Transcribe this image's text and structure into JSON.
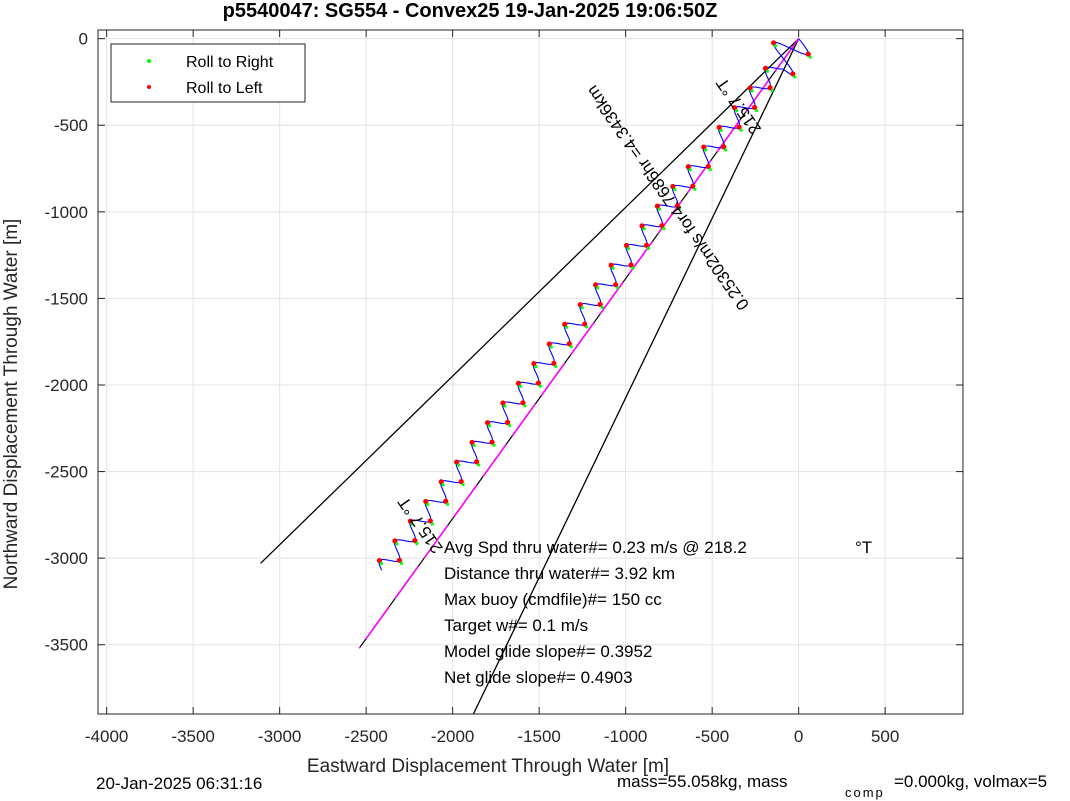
{
  "chart_data": {
    "type": "line",
    "title": "p5540047: SG554 - Convex25 19-Jan-2025 19:06:50Z",
    "xlabel": "Eastward Displacement Through Water [m]",
    "ylabel": "Northward Displacement Through Water [m]",
    "xlim": [
      -4050,
      950
    ],
    "ylim": [
      -3900,
      50
    ],
    "grid": true,
    "legend_position": "top-left",
    "xticks": [
      -4000,
      -3500,
      -3000,
      -2500,
      -2000,
      -1500,
      -1000,
      -500,
      0,
      500
    ],
    "yticks": [
      0,
      -500,
      -1000,
      -1500,
      -2000,
      -2500,
      -3000,
      -3500
    ],
    "series": [
      {
        "name": "Roll to Right",
        "color": "#00ff00",
        "marker": "dot"
      },
      {
        "name": "Roll to Left",
        "color": "#ff0000",
        "marker": "dot"
      }
    ],
    "track": {
      "color": "#0000ff",
      "start": [
        0,
        0
      ],
      "end": [
        -2410,
        -3070
      ],
      "lateral_amplitude_m": 45,
      "cycles": 27
    },
    "envelope_lines": [
      {
        "x": [
          0,
          -3110
        ],
        "y": [
          0,
          -3030
        ],
        "color": "#000000"
      },
      {
        "x": [
          0,
          -1880
        ],
        "y": [
          0,
          -3900
        ],
        "color": "#000000"
      }
    ],
    "mean_line": {
      "x": [
        0,
        -2540
      ],
      "y": [
        0,
        -3520
      ],
      "color": "#ff00ff"
    },
    "annotations": [
      {
        "text": "215.7 °T",
        "x": -2160,
        "y": -2790,
        "rotation_deg": 235
      },
      {
        "text": "215.7 °T",
        "x": -320,
        "y": -370,
        "rotation_deg": 235
      },
      {
        "text": "0.25302m/s for4.7686hr =4.3436km",
        "x": -730,
        "y": -900,
        "rotation_deg": 235
      }
    ],
    "stats": [
      "Avg Spd thru water#=  0.23 m/s @ 218.2",
      "Distance thru water#=  3.92 km",
      "Max buoy (cmdfile)#= 150 cc",
      "Target w#= 0.1 m/s",
      "Model glide slope#= 0.3952",
      "Net glide slope#= 0.4903"
    ],
    "stats_unit": "°T"
  },
  "footer": {
    "timestamp": "20-Jan-2025 06:31:16",
    "mass": "mass=55.058kg, mass",
    "mass_sub": "comp",
    "mass_rest": "=0.000kg, volmax=5"
  }
}
